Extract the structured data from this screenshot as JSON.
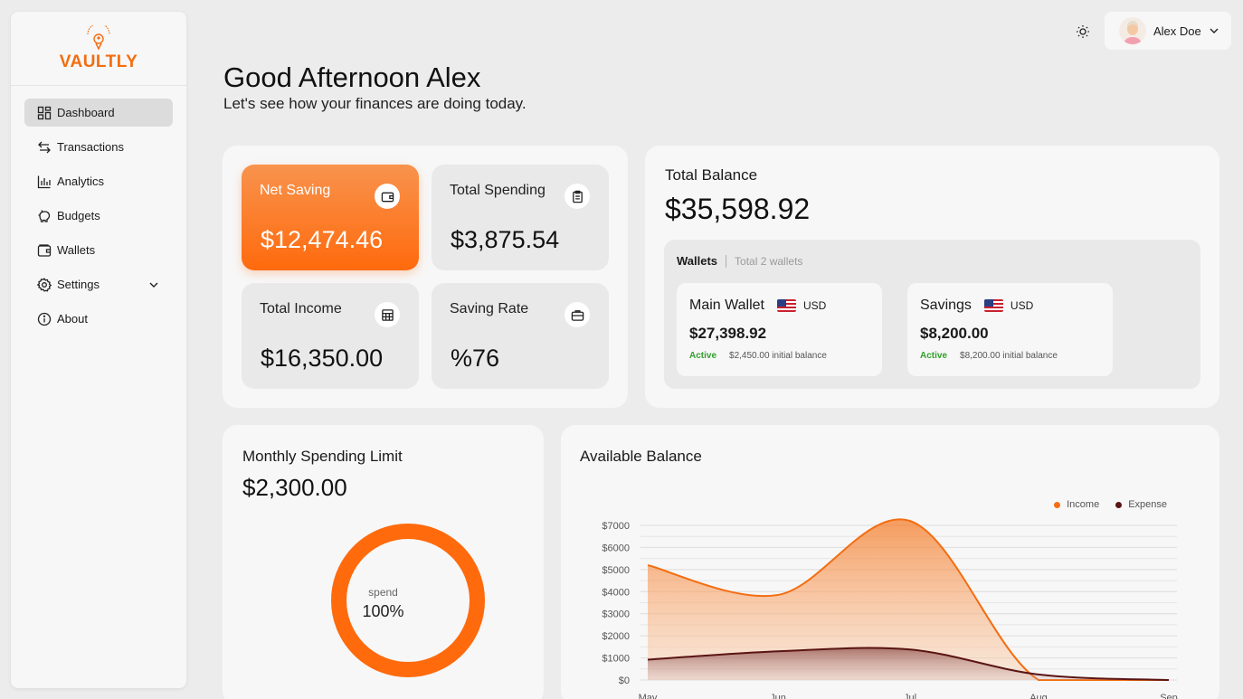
{
  "brand": {
    "name": "VAULTLY",
    "accent": "#f36d12"
  },
  "sidebar": {
    "items": [
      {
        "label": "Dashboard",
        "icon": "dashboard-grid-icon",
        "active": true
      },
      {
        "label": "Transactions",
        "icon": "arrows-swap-icon"
      },
      {
        "label": "Analytics",
        "icon": "bar-chart-icon"
      },
      {
        "label": "Budgets",
        "icon": "piggy-bank-icon"
      },
      {
        "label": "Wallets",
        "icon": "wallet-icon"
      },
      {
        "label": "Settings",
        "icon": "gear-icon",
        "expandable": true
      },
      {
        "label": "About",
        "icon": "info-icon"
      }
    ]
  },
  "header": {
    "user_name": "Alex Doe",
    "theme_icon": "sun-icon"
  },
  "greeting": {
    "title": "Good Afternoon Alex",
    "subtitle": "Let's see how your finances are doing today."
  },
  "stats": {
    "net_saving": {
      "label": "Net Saving",
      "value": "$12,474.46"
    },
    "total_spending": {
      "label": "Total Spending",
      "value": "$3,875.54"
    },
    "total_income": {
      "label": "Total Income",
      "value": "$16,350.00"
    },
    "saving_rate": {
      "label": "Saving Rate",
      "value": "%76"
    }
  },
  "balance": {
    "label": "Total Balance",
    "value": "$35,598.92",
    "wallets_title": "Wallets",
    "wallets_count": "Total 2 wallets",
    "wallets": [
      {
        "name": "Main Wallet",
        "currency": "USD",
        "amount": "$27,398.92",
        "status": "Active",
        "initial": "$2,450.00 initial balance"
      },
      {
        "name": "Savings",
        "currency": "USD",
        "amount": "$8,200.00",
        "status": "Active",
        "initial": "$8,200.00 initial balance"
      }
    ]
  },
  "limit": {
    "label": "Monthly Spending Limit",
    "value": "$2,300.00",
    "ring_caption": "spend",
    "ring_value": "100%",
    "ring_fraction": 1.0
  },
  "chart_data": {
    "type": "area",
    "title": "Available Balance",
    "categories": [
      "May",
      "Jun",
      "Jul",
      "Aug",
      "Sep"
    ],
    "yticks": [
      "$7000",
      "$6000",
      "$5000",
      "$4000",
      "$3000",
      "$2000",
      "$1000",
      "$0"
    ],
    "ylim": [
      0,
      7000
    ],
    "series": [
      {
        "name": "Income",
        "color": "#f36d12",
        "values": [
          5200,
          3850,
          7200,
          0,
          0
        ]
      },
      {
        "name": "Expense",
        "color": "#5a1414",
        "values": [
          920,
          1300,
          1380,
          250,
          0
        ]
      }
    ],
    "legend": "top-right",
    "grid": true
  }
}
